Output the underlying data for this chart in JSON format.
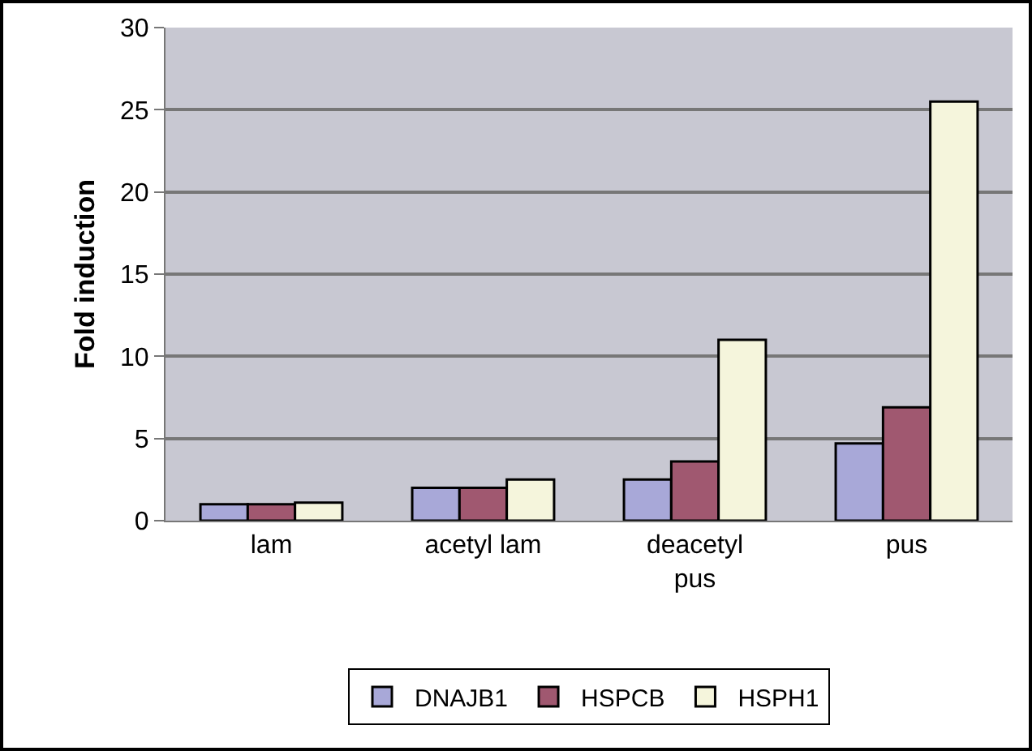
{
  "chart_data": {
    "type": "bar",
    "ylabel": "Fold induction",
    "categories": [
      "lam",
      "acetyl lam",
      "deacetyl pus",
      "pus"
    ],
    "series": [
      {
        "name": "DNAJB1",
        "color": "#a8a8d8",
        "values": [
          1.0,
          2.0,
          2.5,
          4.7
        ]
      },
      {
        "name": "HSPCB",
        "color": "#a05870",
        "values": [
          1.0,
          2.0,
          3.6,
          6.9
        ]
      },
      {
        "name": "HSPH1",
        "color": "#f5f5dc",
        "values": [
          1.1,
          2.5,
          11,
          25.5
        ]
      }
    ],
    "ylim": [
      0,
      30
    ],
    "yticks": [
      0,
      5,
      10,
      15,
      20,
      25,
      30
    ],
    "grid": "y",
    "legend": "bottom"
  }
}
